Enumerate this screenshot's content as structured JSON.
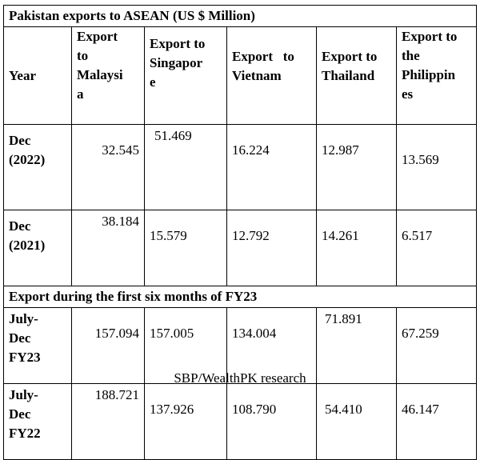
{
  "table": {
    "title": "Pakistan exports to ASEAN (US $ Million)",
    "headers": {
      "year": "Year",
      "malaysia": [
        "Export",
        "to",
        "Malaysi",
        "a"
      ],
      "singapore": [
        "Export to",
        "Singapor",
        "e"
      ],
      "vietnam": [
        "Export   to",
        "Vietnam"
      ],
      "thailand": [
        "Export to",
        "Thailand"
      ],
      "philippines": [
        "Export to",
        "the",
        "Philippin",
        "es"
      ]
    },
    "rows": [
      {
        "year": [
          "Dec",
          "(2022)"
        ],
        "malaysia": "32.545",
        "singapore": "51.469",
        "vietnam": "16.224",
        "thailand": "12.987",
        "philippines": "13.569"
      },
      {
        "year": [
          "Dec",
          "(2021)"
        ],
        "malaysia": "38.184",
        "singapore": "15.579",
        "vietnam": "12.792",
        "thailand": "14.261",
        "philippines": "6.517"
      }
    ],
    "section_title": "Export during the first six months of FY23",
    "rows_fy": [
      {
        "year": [
          "July-",
          "Dec",
          "FY23"
        ],
        "malaysia": "157.094",
        "singapore": "157.005",
        "vietnam": "134.004",
        "thailand": "71.891",
        "philippines": "67.259"
      },
      {
        "year": [
          "July-",
          "Dec",
          "FY22"
        ],
        "malaysia": "188.721",
        "singapore": "137.926",
        "vietnam": "108.790",
        "thailand": "54.410",
        "philippines": "46.147"
      }
    ]
  },
  "caption": "SBP/WealthPK research"
}
